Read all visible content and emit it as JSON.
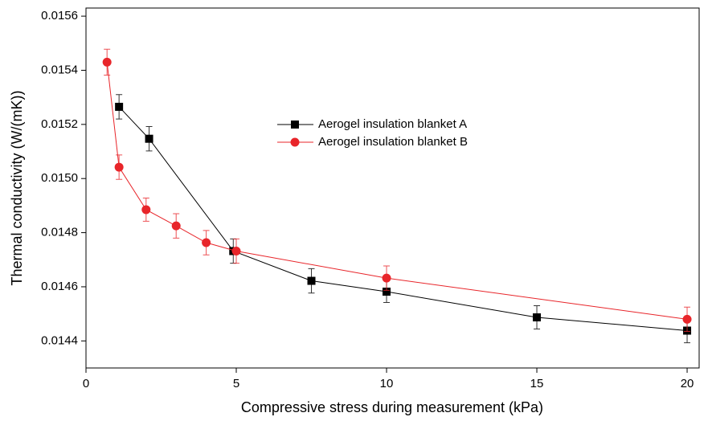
{
  "chart_data": {
    "type": "line",
    "x_label": "Compressive stress during measurement (kPa)",
    "y_label": "Thermal conductivity (W/(mK))",
    "xlim": [
      0,
      20.4
    ],
    "xticks": [
      0,
      5,
      10,
      15,
      20
    ],
    "ylim": [
      0.0143,
      0.01563
    ],
    "yticks": [
      0.0144,
      0.0146,
      0.0148,
      {
        "value": 0.015,
        "label": "0.0150"
      },
      0.0152,
      0.0154,
      0.0156
    ],
    "series": [
      {
        "name": "Aerogel insulation blanket A",
        "color": "#000000",
        "marker": "square",
        "x": [
          1.1,
          2.1,
          4.9,
          7.5,
          10,
          15,
          20
        ],
        "values": [
          0.015265,
          0.015147,
          0.014732,
          0.014622,
          0.014582,
          0.014487,
          0.014438
        ],
        "errors": [
          4.5e-05,
          4.5e-05,
          4.5e-05,
          4.5e-05,
          4e-05,
          4.3e-05,
          4.5e-05
        ]
      },
      {
        "name": "Aerogel insulation blanket B",
        "color": "#e8252a",
        "marker": "circle",
        "x": [
          0.7,
          1.1,
          2,
          3,
          4,
          5,
          10,
          20
        ],
        "values": [
          0.01543,
          0.015042,
          0.014885,
          0.014825,
          0.014763,
          0.014732,
          0.014632,
          0.01448
        ],
        "errors": [
          4.8e-05,
          4.5e-05,
          4.3e-05,
          4.5e-05,
          4.5e-05,
          4.5e-05,
          4.5e-05,
          4.5e-05
        ]
      }
    ]
  }
}
